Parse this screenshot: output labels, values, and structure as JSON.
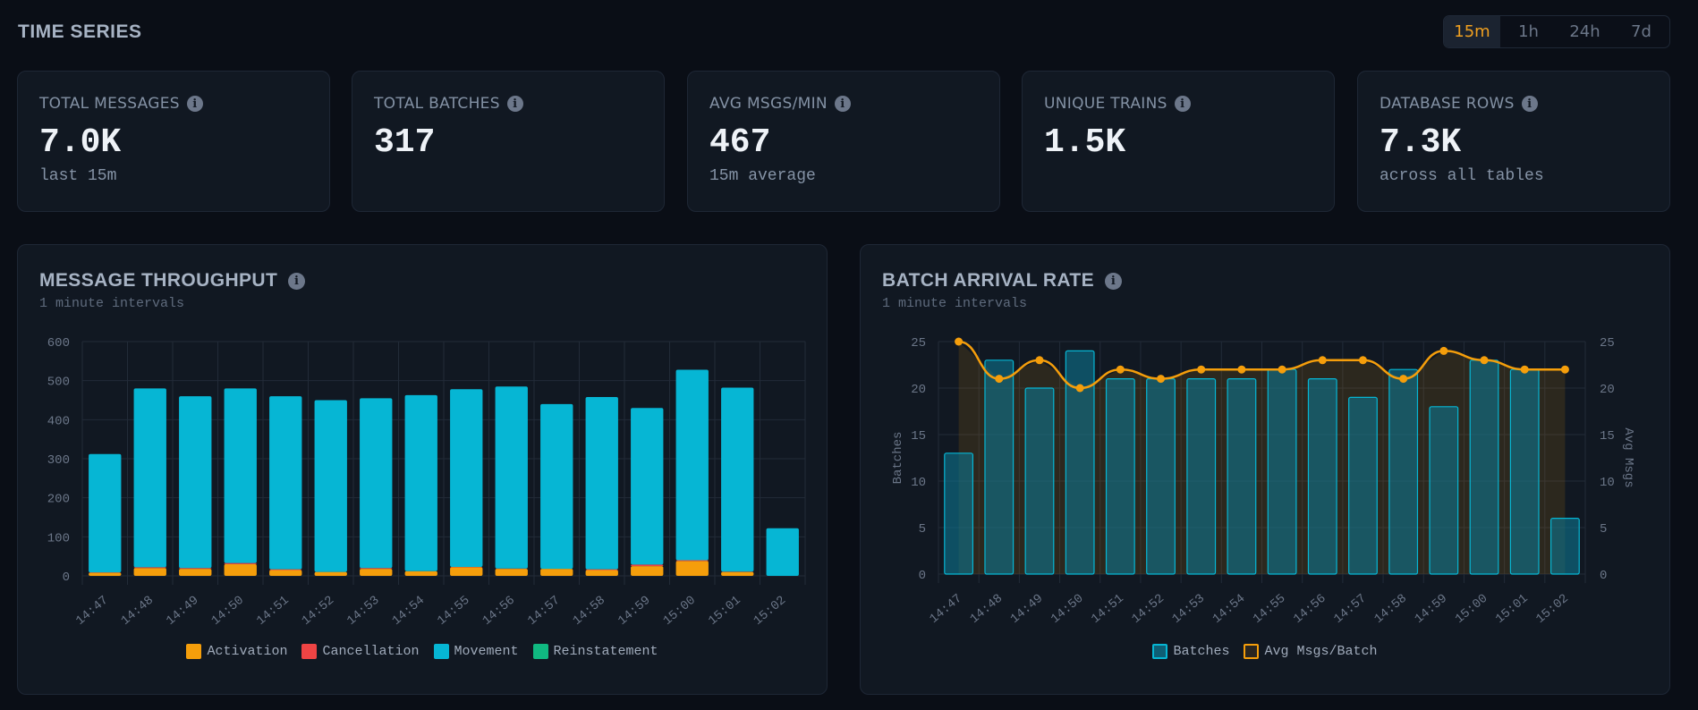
{
  "header": {
    "title": "TIME SERIES"
  },
  "range": {
    "options": [
      "15m",
      "1h",
      "24h",
      "7d"
    ],
    "selected": "15m"
  },
  "kpis": [
    {
      "label": "TOTAL MESSAGES",
      "value": "7.0K",
      "sub": "last 15m"
    },
    {
      "label": "TOTAL BATCHES",
      "value": "317",
      "sub": ""
    },
    {
      "label": "AVG MSGS/MIN",
      "value": "467",
      "sub": "15m average"
    },
    {
      "label": "UNIQUE TRAINS",
      "value": "1.5K",
      "sub": ""
    },
    {
      "label": "DATABASE ROWS",
      "value": "7.3K",
      "sub": "across all tables"
    }
  ],
  "panels": {
    "throughput": {
      "title": "MESSAGE THROUGHPUT",
      "subtitle": "1 minute intervals"
    },
    "batch": {
      "title": "BATCH ARRIVAL RATE",
      "subtitle": "1 minute intervals"
    }
  },
  "colors": {
    "activation": "#f59e0b",
    "cancellation": "#ef4444",
    "movement": "#06b6d4",
    "reinstatement": "#10b981",
    "batches": "#0e7490",
    "avg_line": "#f59e0b",
    "accent": "#f0a020"
  },
  "chart_data": [
    {
      "type": "bar",
      "stacked": true,
      "title": "MESSAGE THROUGHPUT",
      "subtitle": "1 minute intervals",
      "xlabel": "",
      "ylabel": "",
      "ylim": [
        0,
        600
      ],
      "yticks": [
        0,
        100,
        200,
        300,
        400,
        500,
        600
      ],
      "grid": true,
      "legend": "bottom",
      "categories": [
        "14:47",
        "14:48",
        "14:49",
        "14:50",
        "14:51",
        "14:52",
        "14:53",
        "14:54",
        "14:55",
        "14:56",
        "14:57",
        "14:58",
        "14:59",
        "15:00",
        "15:01",
        "15:02"
      ],
      "series": [
        {
          "name": "Activation",
          "key": "activation",
          "values": [
            8,
            20,
            18,
            30,
            15,
            10,
            18,
            12,
            22,
            18,
            18,
            15,
            25,
            38,
            10,
            0
          ]
        },
        {
          "name": "Cancellation",
          "key": "cancellation",
          "values": [
            1,
            2,
            2,
            3,
            2,
            0,
            2,
            0,
            1,
            1,
            0,
            2,
            4,
            2,
            1,
            0
          ]
        },
        {
          "name": "Movement",
          "key": "movement",
          "values": [
            303,
            458,
            440,
            447,
            443,
            440,
            435,
            451,
            455,
            466,
            422,
            441,
            401,
            488,
            471,
            122
          ]
        },
        {
          "name": "Reinstatement",
          "key": "reinstatement",
          "values": [
            0,
            0,
            0,
            0,
            0,
            0,
            0,
            0,
            0,
            0,
            0,
            0,
            0,
            0,
            0,
            0
          ]
        }
      ]
    },
    {
      "type": "bar",
      "title": "BATCH ARRIVAL RATE",
      "subtitle": "1 minute intervals",
      "xlabel": "",
      "ylabel": "Batches",
      "y2label": "Avg Msgs",
      "ylim": [
        0,
        25
      ],
      "y2lim": [
        0,
        25
      ],
      "yticks": [
        0,
        5,
        10,
        15,
        20,
        25
      ],
      "grid": true,
      "legend": "bottom",
      "categories": [
        "14:47",
        "14:48",
        "14:49",
        "14:50",
        "14:51",
        "14:52",
        "14:53",
        "14:54",
        "14:55",
        "14:56",
        "14:57",
        "14:58",
        "14:59",
        "15:00",
        "15:01",
        "15:02"
      ],
      "series": [
        {
          "name": "Batches",
          "type": "bar",
          "axis": "left",
          "values": [
            13,
            23,
            20,
            24,
            21,
            21,
            21,
            21,
            22,
            21,
            19,
            22,
            18,
            23,
            22,
            6
          ]
        },
        {
          "name": "Avg Msgs/Batch",
          "type": "line",
          "axis": "right",
          "values": [
            25,
            21,
            23,
            20,
            22,
            21,
            22,
            22,
            22,
            23,
            23,
            21,
            24,
            23,
            22,
            22
          ]
        }
      ]
    }
  ]
}
